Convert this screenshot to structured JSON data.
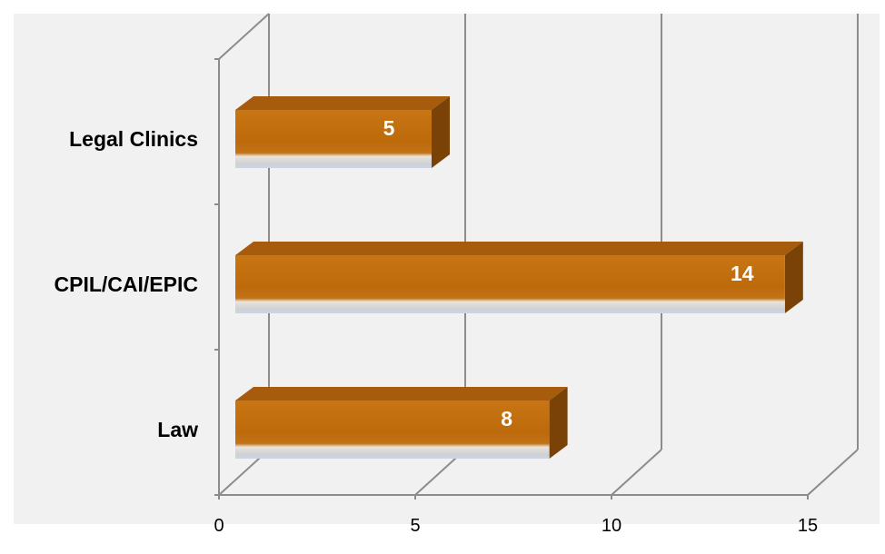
{
  "chart_data": {
    "type": "bar",
    "orientation": "horizontal",
    "style": "3d",
    "categories": [
      "Legal Clinics",
      "CPIL/CAI/EPIC",
      "Law"
    ],
    "values": [
      5,
      14,
      8
    ],
    "data_labels": [
      "5",
      "14",
      "8"
    ],
    "x_ticks": [
      "0",
      "5",
      "10",
      "15"
    ],
    "xlim": [
      0,
      15
    ],
    "title": "",
    "xlabel": "",
    "ylabel": "",
    "grid": true,
    "legend": "none",
    "colors": {
      "bar_front": "#c06a0a",
      "bar_top": "#a65c0c",
      "bar_side": "#7a4206",
      "bar_bottom": "#cdd3df",
      "plot_background": "#f1f1f1",
      "grid": "#8c8c8c"
    }
  }
}
